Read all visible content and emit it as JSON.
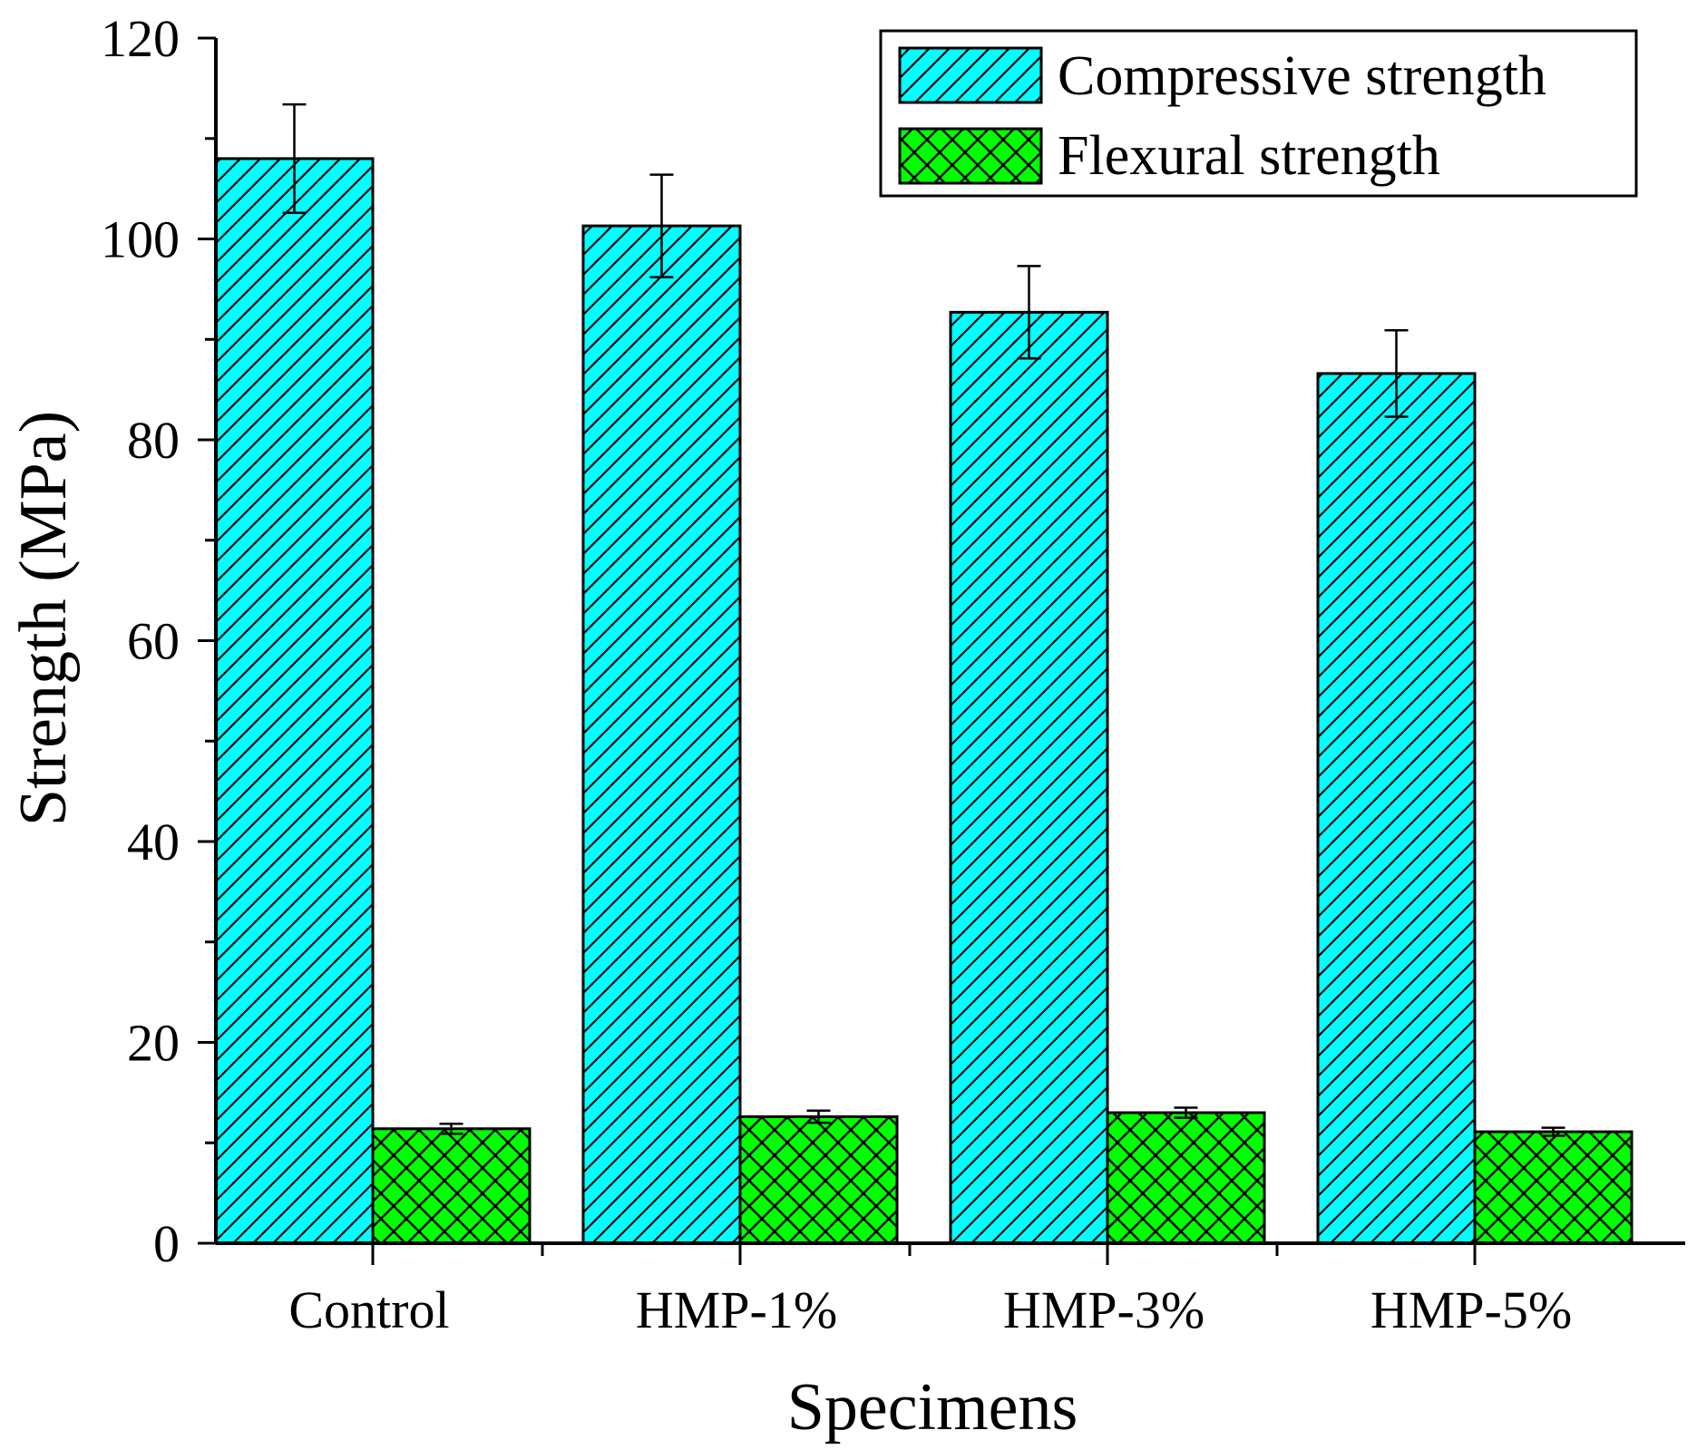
{
  "chart_data": {
    "type": "bar",
    "title": "",
    "xlabel": "Specimens",
    "ylabel": "Strength (MPa)",
    "categories": [
      "Control",
      "HMP-1%",
      "HMP-3%",
      "HMP-5%"
    ],
    "ylim": [
      0,
      120
    ],
    "yticks": [
      0,
      20,
      40,
      60,
      80,
      100,
      120
    ],
    "yticks_minor": [
      10,
      30,
      50,
      70,
      90,
      110
    ],
    "legend_position": "top-right",
    "series": [
      {
        "name": "Compressive strength",
        "values": [
          108.0,
          101.3,
          92.7,
          86.6
        ],
        "errors": [
          5.4,
          5.1,
          4.6,
          4.3
        ],
        "color": "#00ffff",
        "pattern": "diagonal"
      },
      {
        "name": "Flexural strength",
        "values": [
          11.4,
          12.6,
          13.0,
          11.1
        ],
        "errors": [
          0.5,
          0.6,
          0.5,
          0.4
        ],
        "color": "#00ff00",
        "pattern": "crosshatch"
      }
    ]
  }
}
